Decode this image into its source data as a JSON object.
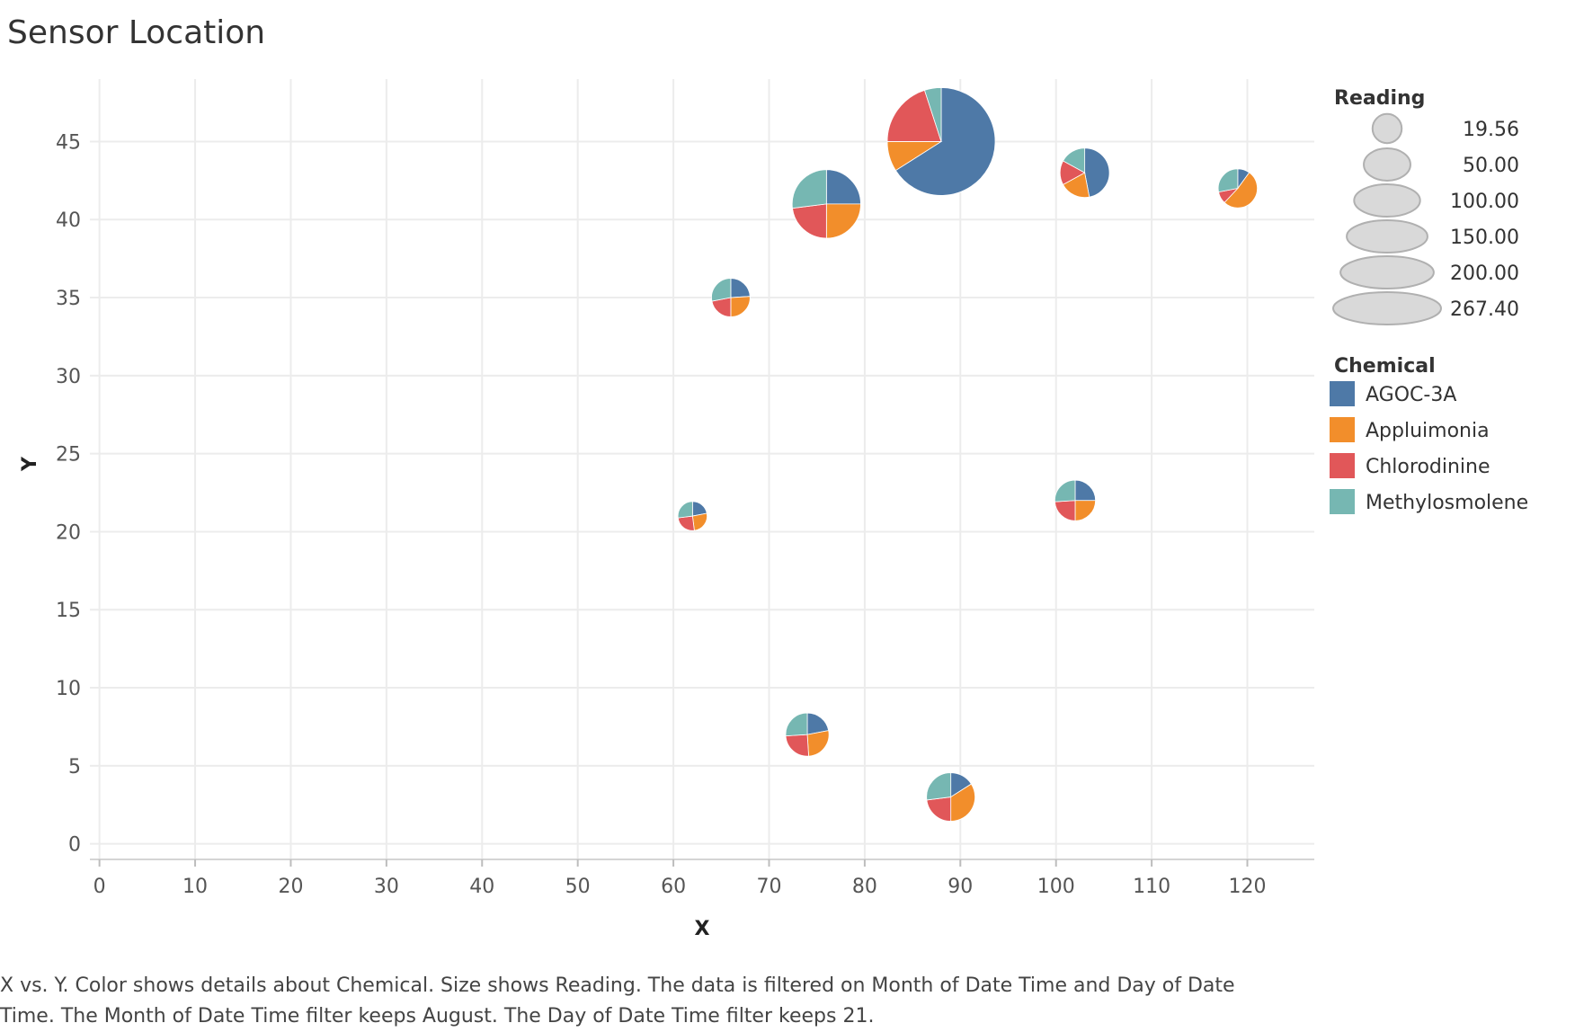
{
  "colors": {
    "AGOC-3A": "#4e79a7",
    "Appluimonia": "#f28e2b",
    "Chlorodinine": "#e15759",
    "Methylosmolene": "#76b7b2",
    "size_legend_fill": "#d9d9d9",
    "size_legend_stroke": "#b0b0b0",
    "gridline": "#ececec"
  },
  "caption": "X vs. Y.  Color shows details about Chemical.  Size shows Reading. The data is filtered on Month of Date Time and Day of Date Time. The Month of Date Time filter keeps August. The Day of Date Time filter keeps 21.",
  "chart_data": {
    "type": "scatter",
    "mark": "pie",
    "title": "Sensor Location",
    "xlabel": "X",
    "ylabel": "Y",
    "xlim": [
      -1,
      127
    ],
    "ylim": [
      -1,
      49
    ],
    "xticks": [
      0,
      10,
      20,
      30,
      40,
      50,
      60,
      70,
      80,
      90,
      100,
      110,
      120
    ],
    "yticks": [
      0,
      5,
      10,
      15,
      20,
      25,
      30,
      35,
      40,
      45
    ],
    "grid": true,
    "chemicals": [
      "AGOC-3A",
      "Appluimonia",
      "Chlorodinine",
      "Methylosmolene"
    ],
    "size_legend": {
      "title": "Reading",
      "values": [
        "19.56",
        "50.00",
        "100.00",
        "150.00",
        "200.00",
        "267.40"
      ]
    },
    "color_legend": {
      "title": "Chemical",
      "placement": "right"
    },
    "points": [
      {
        "x": 88,
        "y": 45,
        "reading": 267.4,
        "shares": [
          0.66,
          0.09,
          0.2,
          0.05
        ]
      },
      {
        "x": 76,
        "y": 41,
        "reading": 108,
        "shares": [
          0.25,
          0.25,
          0.23,
          0.27
        ]
      },
      {
        "x": 103,
        "y": 43,
        "reading": 56,
        "shares": [
          0.47,
          0.2,
          0.16,
          0.17
        ]
      },
      {
        "x": 119,
        "y": 42,
        "reading": 35,
        "shares": [
          0.1,
          0.52,
          0.1,
          0.28
        ]
      },
      {
        "x": 66,
        "y": 35,
        "reading": 34,
        "shares": [
          0.24,
          0.26,
          0.22,
          0.28
        ]
      },
      {
        "x": 62,
        "y": 21,
        "reading": 19.56,
        "shares": [
          0.22,
          0.26,
          0.25,
          0.27
        ]
      },
      {
        "x": 102,
        "y": 22,
        "reading": 38,
        "shares": [
          0.25,
          0.25,
          0.24,
          0.26
        ]
      },
      {
        "x": 74,
        "y": 7,
        "reading": 43,
        "shares": [
          0.22,
          0.27,
          0.25,
          0.26
        ]
      },
      {
        "x": 89,
        "y": 3,
        "reading": 54,
        "shares": [
          0.16,
          0.34,
          0.23,
          0.27
        ]
      }
    ]
  }
}
